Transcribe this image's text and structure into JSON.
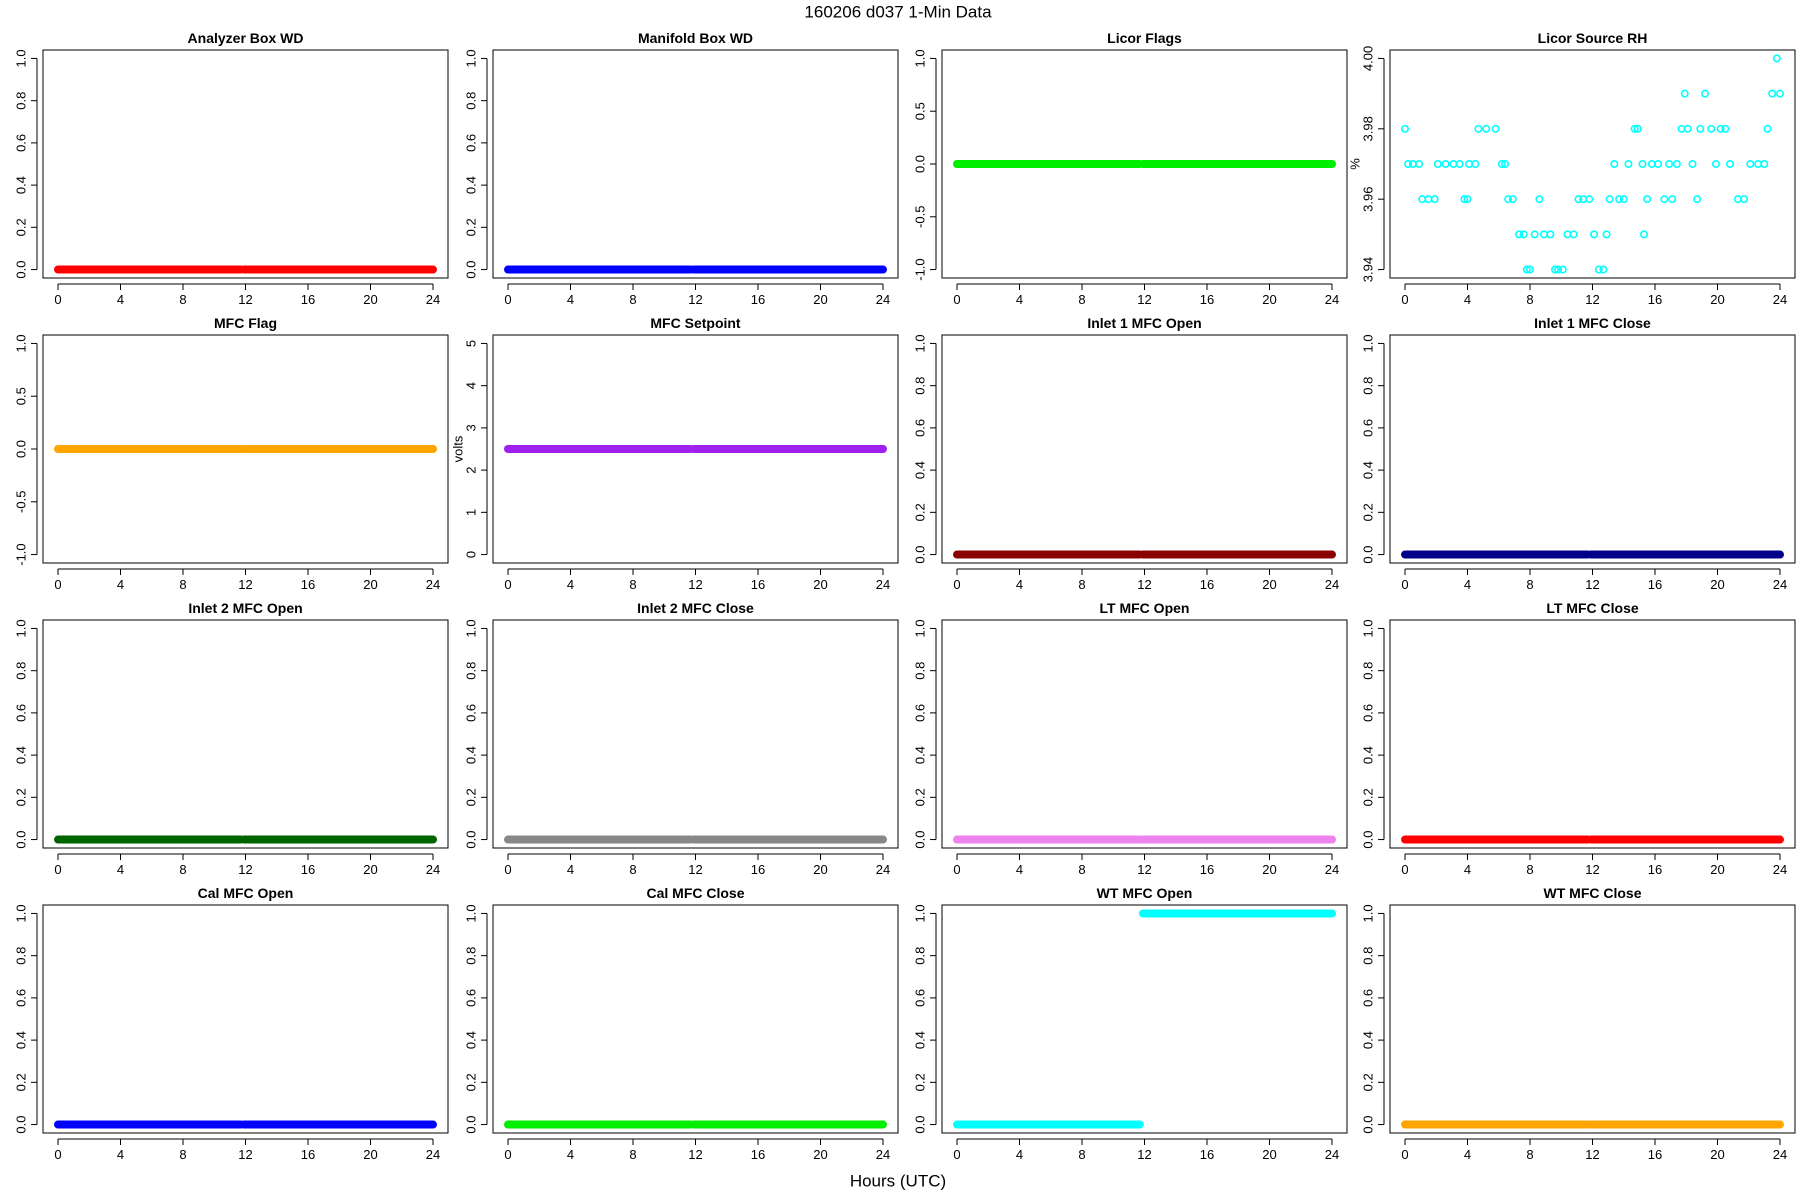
{
  "title": "160206   d037   1-Min Data",
  "xlabel": "Hours (UTC)",
  "chart_data": [
    {
      "type": "line",
      "title": "Analyzer Box WD",
      "color": "#ff0000",
      "x": [
        0,
        11.7,
        11.8,
        11.9,
        24
      ],
      "values": [
        0,
        0,
        null,
        0,
        0
      ],
      "xlim": [
        -0.96,
        24.96
      ],
      "xticks": [
        0,
        4,
        8,
        12,
        16,
        20,
        24
      ],
      "ylim": [
        -0.04,
        1.04
      ],
      "yticks": [
        {
          "value": 0,
          "label": "0.0"
        },
        {
          "value": 0.2,
          "label": "0.2"
        },
        {
          "value": 0.4,
          "label": "0.4"
        },
        {
          "value": 0.6,
          "label": "0.6"
        },
        {
          "value": 0.8,
          "label": "0.8"
        },
        {
          "value": 1,
          "label": "1.0"
        }
      ]
    },
    {
      "type": "line",
      "title": "Manifold Box WD",
      "color": "#0000ff",
      "x": [
        0,
        11.7,
        11.8,
        11.9,
        24
      ],
      "values": [
        0,
        0,
        null,
        0,
        0
      ],
      "xlim": [
        -0.96,
        24.96
      ],
      "xticks": [
        0,
        4,
        8,
        12,
        16,
        20,
        24
      ],
      "ylim": [
        -0.04,
        1.04
      ],
      "yticks": [
        {
          "value": 0,
          "label": "0.0"
        },
        {
          "value": 0.2,
          "label": "0.2"
        },
        {
          "value": 0.4,
          "label": "0.4"
        },
        {
          "value": 0.6,
          "label": "0.6"
        },
        {
          "value": 0.8,
          "label": "0.8"
        },
        {
          "value": 1,
          "label": "1.0"
        }
      ]
    },
    {
      "type": "line",
      "title": "Licor Flags",
      "color": "#00ee00",
      "x": [
        0,
        11.7,
        11.8,
        11.9,
        24
      ],
      "values": [
        0,
        0,
        null,
        0,
        0
      ],
      "xlim": [
        -0.96,
        24.96
      ],
      "xticks": [
        0,
        4,
        8,
        12,
        16,
        20,
        24
      ],
      "ylim": [
        -1.08,
        1.08
      ],
      "yticks": [
        {
          "value": -1,
          "label": "-1.0"
        },
        {
          "value": -0.5,
          "label": "-0.5"
        },
        {
          "value": 0,
          "label": "0.0"
        },
        {
          "value": 0.5,
          "label": "0.5"
        },
        {
          "value": 1,
          "label": "1.0"
        }
      ]
    },
    {
      "type": "scatter",
      "title": "Licor Source RH",
      "ylabel": "%",
      "color": "#00ffff",
      "x": [
        0,
        0.2,
        0.5,
        0.9,
        1.1,
        1.5,
        1.9,
        2.1,
        2.6,
        3.1,
        3.5,
        3.8,
        4.0,
        4.1,
        4.5,
        4.7,
        5.2,
        5.8,
        6.2,
        6.4,
        6.6,
        6.9,
        7.3,
        7.6,
        7.8,
        8.0,
        8.3,
        8.6,
        8.9,
        9.3,
        9.6,
        9.8,
        10.1,
        10.4,
        10.8,
        11.1,
        11.4,
        11.8,
        12.1,
        12.4,
        12.7,
        12.9,
        13.1,
        13.4,
        13.7,
        14.0,
        14.3,
        14.7,
        14.9,
        15.2,
        15.3,
        15.5,
        15.8,
        16.2,
        16.6,
        16.9,
        17.1,
        17.4,
        17.7,
        17.9,
        18.1,
        18.4,
        18.7,
        18.9,
        19.2,
        19.6,
        19.9,
        20.2,
        20.5,
        20.8,
        21.3,
        21.7,
        22.1,
        22.6,
        23.0,
        23.2,
        23.5,
        23.8,
        24.0
      ],
      "values": [
        3.98,
        3.97,
        3.97,
        3.97,
        3.96,
        3.96,
        3.96,
        3.97,
        3.97,
        3.97,
        3.97,
        3.96,
        3.96,
        3.97,
        3.97,
        3.98,
        3.98,
        3.98,
        3.97,
        3.97,
        3.96,
        3.96,
        3.95,
        3.95,
        3.94,
        3.94,
        3.95,
        3.96,
        3.95,
        3.95,
        3.94,
        3.94,
        3.94,
        3.95,
        3.95,
        3.96,
        3.96,
        3.96,
        3.95,
        3.94,
        3.94,
        3.95,
        3.96,
        3.97,
        3.96,
        3.96,
        3.97,
        3.98,
        3.98,
        3.97,
        3.95,
        3.96,
        3.97,
        3.97,
        3.96,
        3.97,
        3.96,
        3.97,
        3.98,
        3.99,
        3.98,
        3.97,
        3.96,
        3.98,
        3.99,
        3.98,
        3.97,
        3.98,
        3.98,
        3.97,
        3.96,
        3.96,
        3.97,
        3.97,
        3.97,
        3.98,
        3.99,
        4.0,
        3.99
      ],
      "xlim": [
        -0.96,
        24.96
      ],
      "xticks": [
        0,
        4,
        8,
        12,
        16,
        20,
        24
      ],
      "ylim": [
        3.9376,
        4.0024
      ],
      "yticks": [
        3.94,
        3.96,
        3.98,
        {
          "value": 4,
          "label": "4.00"
        }
      ]
    },
    {
      "type": "line",
      "title": "MFC Flag",
      "color": "#ffa500",
      "x": [
        0,
        11.7,
        11.8,
        11.9,
        24
      ],
      "values": [
        0,
        0,
        null,
        0,
        0
      ],
      "xlim": [
        -0.96,
        24.96
      ],
      "xticks": [
        0,
        4,
        8,
        12,
        16,
        20,
        24
      ],
      "ylim": [
        -1.08,
        1.08
      ],
      "yticks": [
        {
          "value": -1,
          "label": "-1.0"
        },
        {
          "value": -0.5,
          "label": "-0.5"
        },
        {
          "value": 0,
          "label": "0.0"
        },
        {
          "value": 0.5,
          "label": "0.5"
        },
        {
          "value": 1,
          "label": "1.0"
        }
      ]
    },
    {
      "type": "line",
      "title": "MFC Setpoint",
      "ylabel": "volts",
      "color": "#a020f0",
      "x": [
        0,
        11.7,
        11.8,
        11.9,
        24
      ],
      "values": [
        2.5,
        2.5,
        null,
        2.5,
        2.5
      ],
      "xlim": [
        -0.96,
        24.96
      ],
      "xticks": [
        0,
        4,
        8,
        12,
        16,
        20,
        24
      ],
      "ylim": [
        -0.2,
        5.2
      ],
      "yticks": [
        0,
        1,
        2,
        3,
        4,
        5
      ]
    },
    {
      "type": "line",
      "title": "Inlet 1 MFC Open",
      "color": "#8b0000",
      "x": [
        0,
        11.7,
        11.8,
        11.9,
        24
      ],
      "values": [
        0,
        0,
        null,
        0,
        0
      ],
      "xlim": [
        -0.96,
        24.96
      ],
      "xticks": [
        0,
        4,
        8,
        12,
        16,
        20,
        24
      ],
      "ylim": [
        -0.04,
        1.04
      ],
      "yticks": [
        {
          "value": 0,
          "label": "0.0"
        },
        {
          "value": 0.2,
          "label": "0.2"
        },
        {
          "value": 0.4,
          "label": "0.4"
        },
        {
          "value": 0.6,
          "label": "0.6"
        },
        {
          "value": 0.8,
          "label": "0.8"
        },
        {
          "value": 1,
          "label": "1.0"
        }
      ]
    },
    {
      "type": "line",
      "title": "Inlet 1 MFC Close",
      "color": "#00008b",
      "x": [
        0,
        11.7,
        11.8,
        11.9,
        24
      ],
      "values": [
        0,
        0,
        null,
        0,
        0
      ],
      "xlim": [
        -0.96,
        24.96
      ],
      "xticks": [
        0,
        4,
        8,
        12,
        16,
        20,
        24
      ],
      "ylim": [
        -0.04,
        1.04
      ],
      "yticks": [
        {
          "value": 0,
          "label": "0.0"
        },
        {
          "value": 0.2,
          "label": "0.2"
        },
        {
          "value": 0.4,
          "label": "0.4"
        },
        {
          "value": 0.6,
          "label": "0.6"
        },
        {
          "value": 0.8,
          "label": "0.8"
        },
        {
          "value": 1,
          "label": "1.0"
        }
      ]
    },
    {
      "type": "line",
      "title": "Inlet 2 MFC Open",
      "color": "#006400",
      "x": [
        0,
        11.7,
        11.8,
        11.9,
        24
      ],
      "values": [
        0,
        0,
        null,
        0,
        0
      ],
      "xlim": [
        -0.96,
        24.96
      ],
      "xticks": [
        0,
        4,
        8,
        12,
        16,
        20,
        24
      ],
      "ylim": [
        -0.04,
        1.04
      ],
      "yticks": [
        {
          "value": 0,
          "label": "0.0"
        },
        {
          "value": 0.2,
          "label": "0.2"
        },
        {
          "value": 0.4,
          "label": "0.4"
        },
        {
          "value": 0.6,
          "label": "0.6"
        },
        {
          "value": 0.8,
          "label": "0.8"
        },
        {
          "value": 1,
          "label": "1.0"
        }
      ]
    },
    {
      "type": "line",
      "title": "Inlet 2 MFC Close",
      "color": "#888888",
      "x": [
        0,
        11.7,
        11.8,
        11.9,
        24
      ],
      "values": [
        0,
        0,
        null,
        0,
        0
      ],
      "xlim": [
        -0.96,
        24.96
      ],
      "xticks": [
        0,
        4,
        8,
        12,
        16,
        20,
        24
      ],
      "ylim": [
        -0.04,
        1.04
      ],
      "yticks": [
        {
          "value": 0,
          "label": "0.0"
        },
        {
          "value": 0.2,
          "label": "0.2"
        },
        {
          "value": 0.4,
          "label": "0.4"
        },
        {
          "value": 0.6,
          "label": "0.6"
        },
        {
          "value": 0.8,
          "label": "0.8"
        },
        {
          "value": 1,
          "label": "1.0"
        }
      ]
    },
    {
      "type": "line",
      "title": "LT MFC Open",
      "color": "#ee82ee",
      "x": [
        0,
        11.7,
        11.8,
        11.9,
        24
      ],
      "values": [
        0,
        0,
        null,
        0,
        0
      ],
      "xlim": [
        -0.96,
        24.96
      ],
      "xticks": [
        0,
        4,
        8,
        12,
        16,
        20,
        24
      ],
      "ylim": [
        -0.04,
        1.04
      ],
      "yticks": [
        {
          "value": 0,
          "label": "0.0"
        },
        {
          "value": 0.2,
          "label": "0.2"
        },
        {
          "value": 0.4,
          "label": "0.4"
        },
        {
          "value": 0.6,
          "label": "0.6"
        },
        {
          "value": 0.8,
          "label": "0.8"
        },
        {
          "value": 1,
          "label": "1.0"
        }
      ]
    },
    {
      "type": "line",
      "title": "LT MFC Close",
      "color": "#ff0000",
      "x": [
        0,
        11.7,
        11.8,
        11.9,
        24
      ],
      "values": [
        0,
        0,
        null,
        0,
        0
      ],
      "xlim": [
        -0.96,
        24.96
      ],
      "xticks": [
        0,
        4,
        8,
        12,
        16,
        20,
        24
      ],
      "ylim": [
        -0.04,
        1.04
      ],
      "yticks": [
        {
          "value": 0,
          "label": "0.0"
        },
        {
          "value": 0.2,
          "label": "0.2"
        },
        {
          "value": 0.4,
          "label": "0.4"
        },
        {
          "value": 0.6,
          "label": "0.6"
        },
        {
          "value": 0.8,
          "label": "0.8"
        },
        {
          "value": 1,
          "label": "1.0"
        }
      ]
    },
    {
      "type": "line",
      "title": "Cal MFC Open",
      "color": "#0000ff",
      "x": [
        0,
        11.7,
        11.8,
        11.9,
        24
      ],
      "values": [
        0,
        0,
        null,
        0,
        0
      ],
      "xlim": [
        -0.96,
        24.96
      ],
      "xticks": [
        0,
        4,
        8,
        12,
        16,
        20,
        24
      ],
      "ylim": [
        -0.04,
        1.04
      ],
      "yticks": [
        {
          "value": 0,
          "label": "0.0"
        },
        {
          "value": 0.2,
          "label": "0.2"
        },
        {
          "value": 0.4,
          "label": "0.4"
        },
        {
          "value": 0.6,
          "label": "0.6"
        },
        {
          "value": 0.8,
          "label": "0.8"
        },
        {
          "value": 1,
          "label": "1.0"
        }
      ]
    },
    {
      "type": "line",
      "title": "Cal MFC Close",
      "color": "#00ee00",
      "x": [
        0,
        11.7,
        11.8,
        11.9,
        24
      ],
      "values": [
        0,
        0,
        null,
        0,
        0
      ],
      "xlim": [
        -0.96,
        24.96
      ],
      "xticks": [
        0,
        4,
        8,
        12,
        16,
        20,
        24
      ],
      "ylim": [
        -0.04,
        1.04
      ],
      "yticks": [
        {
          "value": 0,
          "label": "0.0"
        },
        {
          "value": 0.2,
          "label": "0.2"
        },
        {
          "value": 0.4,
          "label": "0.4"
        },
        {
          "value": 0.6,
          "label": "0.6"
        },
        {
          "value": 0.8,
          "label": "0.8"
        },
        {
          "value": 1,
          "label": "1.0"
        }
      ]
    },
    {
      "type": "line",
      "title": "WT MFC Open",
      "color": "#00ffff",
      "x": [
        0,
        11.7,
        11.8,
        11.9,
        24
      ],
      "values": [
        0,
        0,
        null,
        1,
        1
      ],
      "xlim": [
        -0.96,
        24.96
      ],
      "xticks": [
        0,
        4,
        8,
        12,
        16,
        20,
        24
      ],
      "ylim": [
        -0.04,
        1.04
      ],
      "yticks": [
        {
          "value": 0,
          "label": "0.0"
        },
        {
          "value": 0.2,
          "label": "0.2"
        },
        {
          "value": 0.4,
          "label": "0.4"
        },
        {
          "value": 0.6,
          "label": "0.6"
        },
        {
          "value": 0.8,
          "label": "0.8"
        },
        {
          "value": 1,
          "label": "1.0"
        }
      ]
    },
    {
      "type": "line",
      "title": "WT MFC Close",
      "color": "#ffa500",
      "x": [
        0,
        11.7,
        11.8,
        11.9,
        24
      ],
      "values": [
        0,
        0,
        null,
        0,
        0
      ],
      "xlim": [
        -0.96,
        24.96
      ],
      "xticks": [
        0,
        4,
        8,
        12,
        16,
        20,
        24
      ],
      "ylim": [
        -0.04,
        1.04
      ],
      "yticks": [
        {
          "value": 0,
          "label": "0.0"
        },
        {
          "value": 0.2,
          "label": "0.2"
        },
        {
          "value": 0.4,
          "label": "0.4"
        },
        {
          "value": 0.6,
          "label": "0.6"
        },
        {
          "value": 0.8,
          "label": "0.8"
        },
        {
          "value": 1,
          "label": "1.0"
        }
      ]
    }
  ]
}
